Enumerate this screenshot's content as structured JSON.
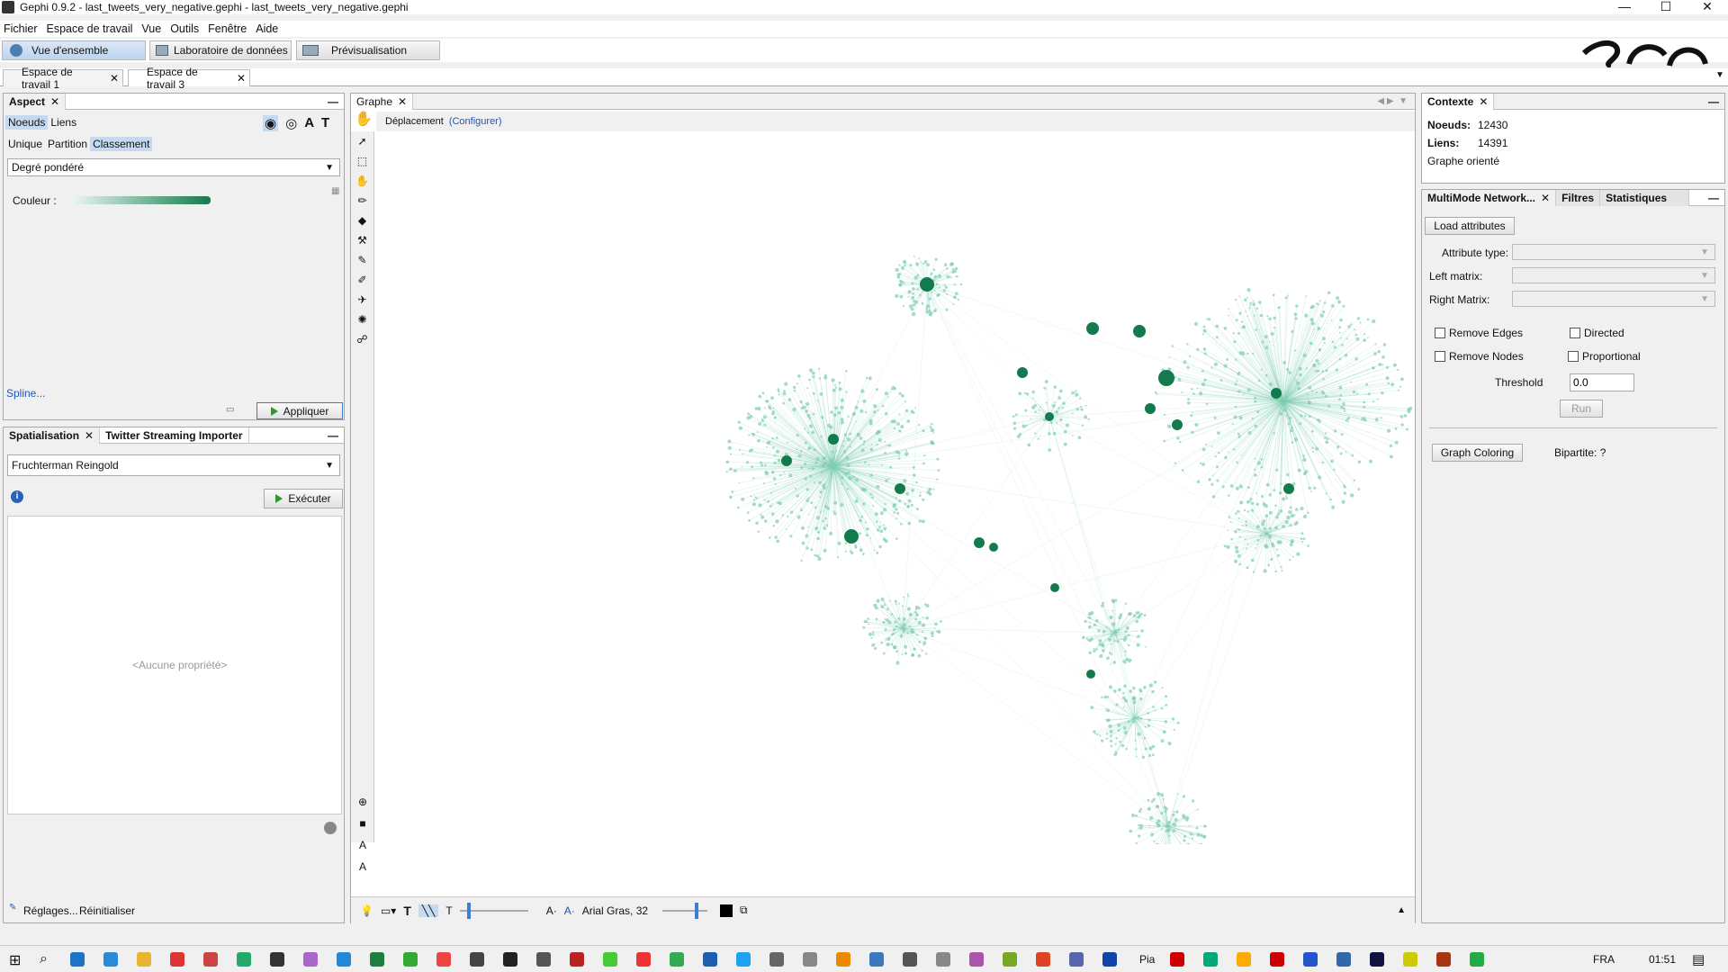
{
  "window": {
    "title": "Gephi 0.9.2 - last_tweets_very_negative.gephi - last_tweets_very_negative.gephi",
    "minimize": "—",
    "maximize": "☐",
    "close": "✕"
  },
  "menu": [
    "Fichier",
    "Espace de travail",
    "Vue",
    "Outils",
    "Fenêtre",
    "Aide"
  ],
  "modes": {
    "overview": "Vue d'ensemble",
    "data_lab": "Laboratoire de données",
    "preview": "Prévisualisation"
  },
  "workspaces": [
    {
      "label": "Espace de travail 1"
    },
    {
      "label": "Espace de travail 3"
    }
  ],
  "aspect": {
    "title": "Aspect",
    "tabs": [
      "Noeuds",
      "Liens"
    ],
    "subtabs": [
      "Unique",
      "Partition",
      "Classement"
    ],
    "attribute": "Degré pondéré",
    "color_label": "Couleur :",
    "gradient_start": "#e8f5ef",
    "gradient_end": "#137a4d",
    "spline": "Spline...",
    "apply": "Appliquer"
  },
  "layout": {
    "tabs": [
      "Spatialisation",
      "Twitter Streaming Importer"
    ],
    "algorithm": "Fruchterman Reingold",
    "run": "Exécuter",
    "no_props": "<Aucune propriété>",
    "settings": "Réglages...",
    "reset": "Réinitialiser"
  },
  "graph": {
    "title": "Graphe",
    "mode": "Déplacement",
    "configure": "(Configurer)",
    "font": "Arial Gras, 32",
    "node_color": "#137a4d",
    "edge_color": "#7fcdb1"
  },
  "context": {
    "title": "Contexte",
    "nodes_label": "Noeuds:",
    "nodes": "12430",
    "edges_label": "Liens:",
    "edges": "14391",
    "type": "Graphe orienté"
  },
  "multimode": {
    "tabs": [
      "MultiMode Network...",
      "Filtres",
      "Statistiques"
    ],
    "load": "Load attributes",
    "attr_type": "Attribute type:",
    "left": "Left matrix:",
    "right": "Right Matrix:",
    "remove_edges": "Remove Edges",
    "directed": "Directed",
    "remove_nodes": "Remove Nodes",
    "proportional": "Proportional",
    "threshold_label": "Threshold",
    "threshold": "0.0",
    "run": "Run",
    "graph_coloring": "Graph Coloring",
    "bipartite": "Bipartite: ?"
  },
  "taskbar": {
    "lang": "FRA",
    "time": "01:51",
    "pia": "Pia"
  }
}
